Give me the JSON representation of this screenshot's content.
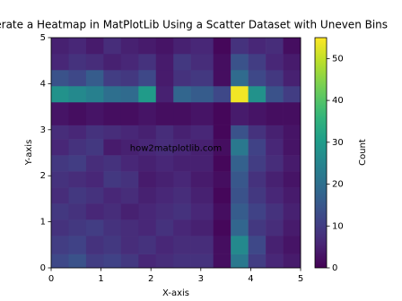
{
  "chart_data": {
    "type": "heatmap",
    "title": "Generate a Heatmap in MatPlotLib Using a Scatter Dataset with Uneven Bins",
    "xlabel": "X-axis",
    "ylabel": "Y-axis",
    "annotation": {
      "text": "how2matplotlib.com",
      "x": 2.5,
      "y": 2.6
    },
    "colormap": "viridis",
    "x_edges": [
      0,
      0.35,
      0.7,
      1.05,
      1.4,
      1.75,
      2.1,
      2.45,
      2.8,
      3.25,
      3.6,
      3.95,
      4.3,
      4.65,
      5
    ],
    "y_edges": [
      0,
      0.3,
      0.7,
      1.05,
      1.4,
      1.75,
      2.1,
      2.45,
      2.8,
      3.1,
      3.6,
      3.95,
      4.3,
      4.65,
      5
    ],
    "values": [
      [
        12,
        14,
        10,
        11,
        9,
        6,
        7,
        8,
        8,
        2,
        22,
        10,
        6,
        4
      ],
      [
        10,
        11,
        8,
        9,
        7,
        8,
        6,
        7,
        7,
        2,
        26,
        12,
        5,
        3
      ],
      [
        8,
        9,
        10,
        8,
        7,
        6,
        8,
        6,
        5,
        1,
        18,
        9,
        7,
        4
      ],
      [
        9,
        8,
        6,
        7,
        5,
        6,
        7,
        8,
        6,
        2,
        16,
        11,
        8,
        5
      ],
      [
        7,
        9,
        8,
        6,
        7,
        5,
        6,
        7,
        5,
        1,
        14,
        9,
        6,
        4
      ],
      [
        8,
        7,
        6,
        9,
        8,
        4,
        5,
        6,
        4,
        2,
        15,
        8,
        5,
        3
      ],
      [
        9,
        10,
        7,
        8,
        6,
        5,
        6,
        5,
        5,
        1,
        17,
        10,
        7,
        4
      ],
      [
        6,
        8,
        9,
        4,
        5,
        6,
        7,
        6,
        5,
        2,
        22,
        11,
        6,
        3
      ],
      [
        7,
        6,
        8,
        7,
        6,
        5,
        7,
        5,
        6,
        1,
        14,
        8,
        5,
        3
      ],
      [
        3,
        2,
        3,
        2,
        2,
        3,
        2,
        2,
        3,
        1,
        4,
        3,
        2,
        2
      ],
      [
        28,
        26,
        24,
        20,
        19,
        30,
        5,
        18,
        16,
        12,
        54,
        28,
        14,
        10
      ],
      [
        14,
        12,
        16,
        10,
        9,
        12,
        4,
        8,
        9,
        2,
        19,
        12,
        9,
        5
      ],
      [
        6,
        8,
        7,
        5,
        6,
        8,
        4,
        9,
        7,
        2,
        14,
        10,
        6,
        4
      ],
      [
        5,
        6,
        4,
        7,
        5,
        4,
        3,
        5,
        6,
        1,
        8,
        6,
        7,
        2
      ]
    ],
    "xlim": [
      0,
      5
    ],
    "xticks": [
      0,
      1,
      2,
      3,
      4,
      5
    ],
    "ylim": [
      0,
      5
    ],
    "yticks": [
      0,
      1,
      2,
      3,
      4,
      5
    ],
    "colorbar": {
      "label": "Count",
      "lim": [
        0,
        55
      ],
      "ticks": [
        0,
        10,
        20,
        30,
        40,
        50
      ]
    }
  }
}
